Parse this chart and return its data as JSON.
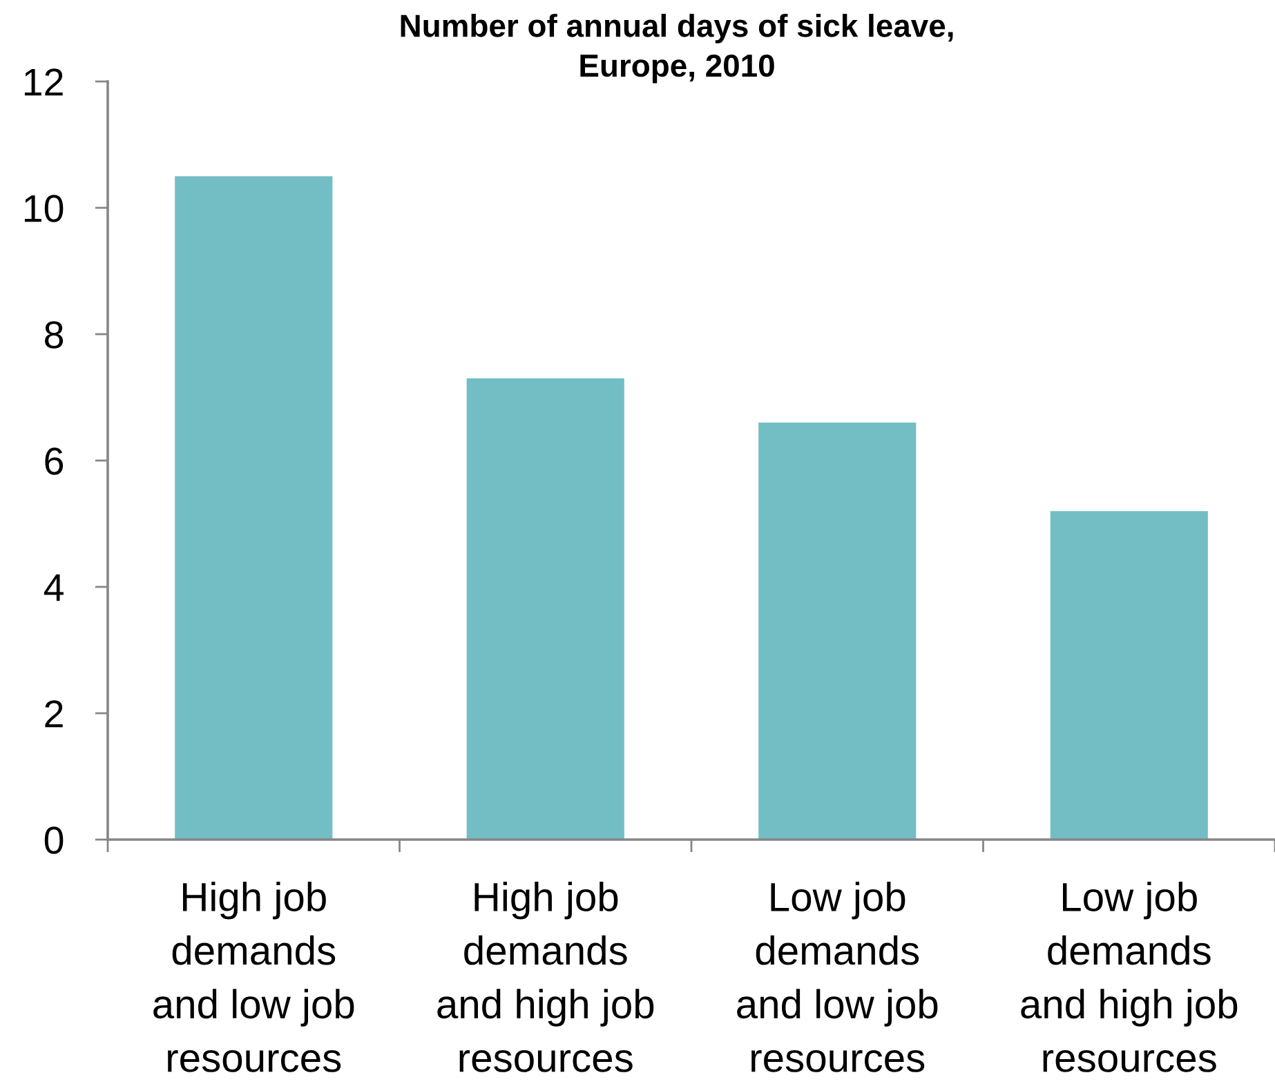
{
  "chart_data": {
    "type": "bar",
    "title": "Number of annual days of sick leave,\nEurope, 2010",
    "categories": [
      "High job\ndemands\nand low job\nresources",
      "High job\ndemands\nand high job\nresources",
      "Low job\ndemands\nand low job\nresources",
      "Low job\ndemands\nand high job\nresources"
    ],
    "values": [
      10.5,
      7.3,
      6.6,
      5.2
    ],
    "color": "#73bec4",
    "ylim": [
      0,
      12
    ],
    "yticks": [
      0,
      2,
      4,
      6,
      8,
      10,
      12
    ]
  }
}
